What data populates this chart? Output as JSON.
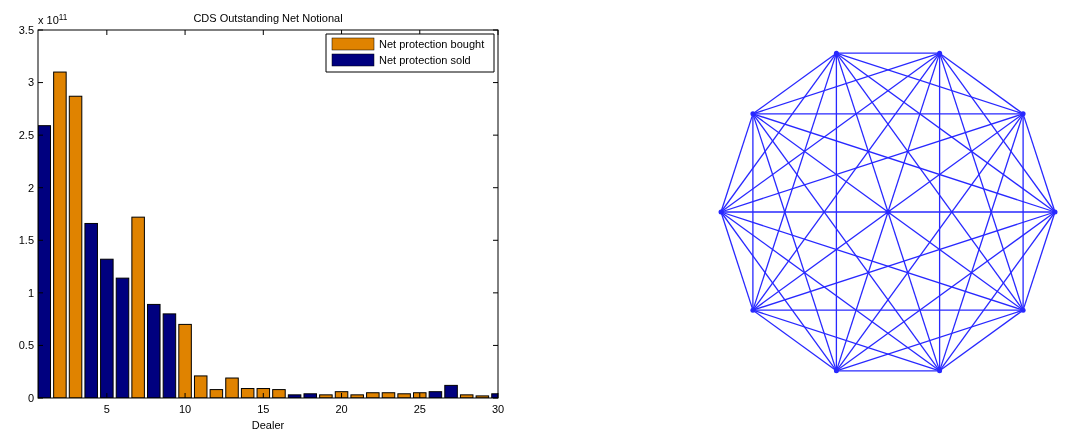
{
  "chart_data": {
    "type": "bar",
    "title": "CDS Outstanding Net Notional",
    "xlabel": "Dealer",
    "annotations": [
      "x 10$^{11}$"
    ],
    "x": [
      1,
      2,
      3,
      4,
      5,
      6,
      7,
      8,
      9,
      10,
      11,
      12,
      13,
      14,
      15,
      16,
      17,
      18,
      19,
      20,
      21,
      22,
      23,
      24,
      25,
      26,
      27,
      28,
      29,
      30
    ],
    "series": [
      {
        "name": "Net protection bought",
        "color": "#e08300",
        "values": [
          null,
          3.1,
          2.87,
          null,
          null,
          null,
          1.72,
          null,
          null,
          0.7,
          0.21,
          0.08,
          0.19,
          0.09,
          0.09,
          0.08,
          null,
          null,
          0.03,
          0.06,
          0.03,
          0.05,
          0.05,
          0.04,
          0.05,
          null,
          null,
          0.03,
          0.02,
          null
        ]
      },
      {
        "name": "Net protection sold",
        "color": "#00007f",
        "values": [
          2.59,
          null,
          null,
          1.66,
          1.32,
          1.14,
          null,
          0.89,
          0.8,
          null,
          null,
          null,
          null,
          null,
          null,
          null,
          0.03,
          0.04,
          null,
          null,
          null,
          null,
          null,
          null,
          null,
          0.06,
          0.12,
          null,
          null,
          0.04
        ]
      }
    ],
    "xlim": [
      0.6,
      30
    ],
    "xticks": [
      5,
      10,
      15,
      20,
      25,
      30
    ],
    "ylim": [
      0,
      3.5
    ],
    "yticks": [
      0,
      0.5,
      1,
      1.5,
      2,
      2.5,
      3,
      3.5
    ],
    "legend": "top right",
    "grid": false
  }
}
